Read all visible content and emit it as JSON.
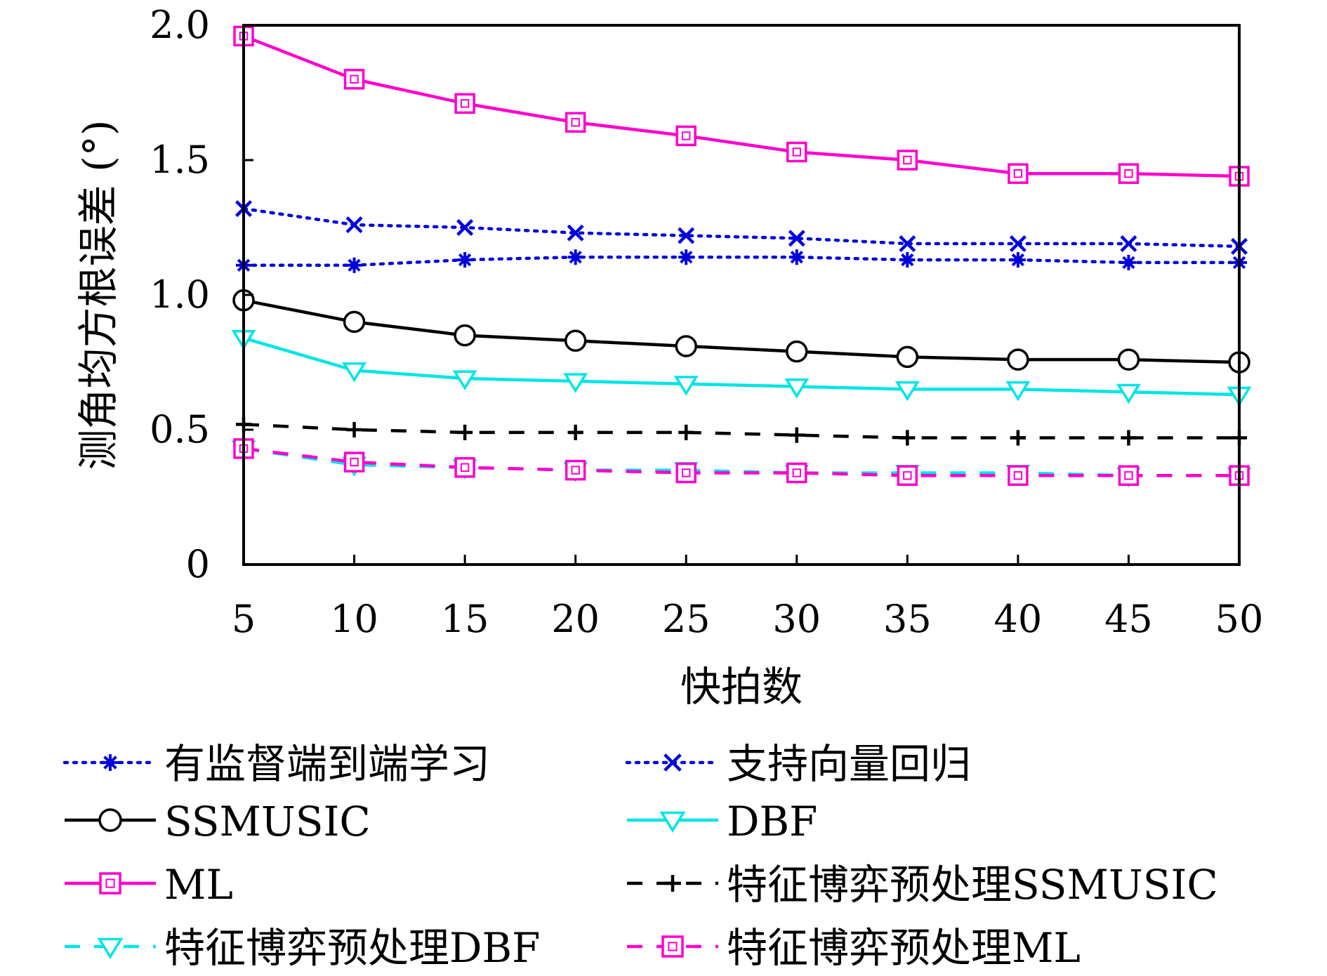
{
  "chart_data": {
    "type": "line",
    "title": "",
    "xlabel": "快拍数",
    "ylabel": "测角均方根误差 (°)",
    "xlim": [
      5,
      50
    ],
    "ylim": [
      0,
      2.0
    ],
    "xticks": [
      5,
      10,
      15,
      20,
      25,
      30,
      35,
      40,
      45,
      50
    ],
    "yticks": [
      0,
      0.5,
      1.0,
      1.5,
      2.0
    ],
    "ytick_labels": [
      "0",
      "0.5",
      "1.0",
      "1.5",
      "2.0"
    ],
    "grid": false,
    "legend_position": "bottom",
    "x": [
      5,
      10,
      15,
      20,
      25,
      30,
      35,
      40,
      45,
      50
    ],
    "series": [
      {
        "name": "有监督端到端学习",
        "color": "#0000dd",
        "style": "dotted",
        "marker": "asterisk",
        "values": [
          1.11,
          1.11,
          1.13,
          1.14,
          1.14,
          1.14,
          1.13,
          1.13,
          1.12,
          1.12
        ]
      },
      {
        "name": "支持向量回归",
        "color": "#0000dd",
        "style": "dotted",
        "marker": "x",
        "values": [
          1.32,
          1.26,
          1.25,
          1.23,
          1.22,
          1.21,
          1.19,
          1.19,
          1.19,
          1.18
        ]
      },
      {
        "name": "SSMUSIC",
        "color": "#000000",
        "style": "solid",
        "marker": "circle",
        "values": [
          0.98,
          0.9,
          0.85,
          0.83,
          0.81,
          0.79,
          0.77,
          0.76,
          0.76,
          0.75
        ]
      },
      {
        "name": "DBF",
        "color": "#00e5e5",
        "style": "solid",
        "marker": "triangle-down",
        "values": [
          0.84,
          0.72,
          0.69,
          0.68,
          0.67,
          0.66,
          0.65,
          0.65,
          0.64,
          0.63
        ]
      },
      {
        "name": "ML",
        "color": "#ff00cc",
        "style": "solid",
        "marker": "square",
        "values": [
          1.96,
          1.8,
          1.71,
          1.64,
          1.59,
          1.53,
          1.5,
          1.45,
          1.45,
          1.44
        ]
      },
      {
        "name": "特征博弈预处理SSMUSIC",
        "color": "#000000",
        "style": "dashed",
        "marker": "plus",
        "values": [
          0.52,
          0.5,
          0.49,
          0.49,
          0.49,
          0.48,
          0.47,
          0.47,
          0.47,
          0.47
        ]
      },
      {
        "name": "特征博弈预处理DBF",
        "color": "#00e5e5",
        "style": "dashed",
        "marker": "triangle-down",
        "values": [
          0.43,
          0.37,
          0.36,
          0.35,
          0.35,
          0.34,
          0.34,
          0.34,
          0.33,
          0.33
        ]
      },
      {
        "name": "特征博弈预处理ML",
        "color": "#ff00cc",
        "style": "dashed",
        "marker": "square",
        "values": [
          0.43,
          0.38,
          0.36,
          0.35,
          0.34,
          0.34,
          0.33,
          0.33,
          0.33,
          0.33
        ]
      }
    ]
  }
}
